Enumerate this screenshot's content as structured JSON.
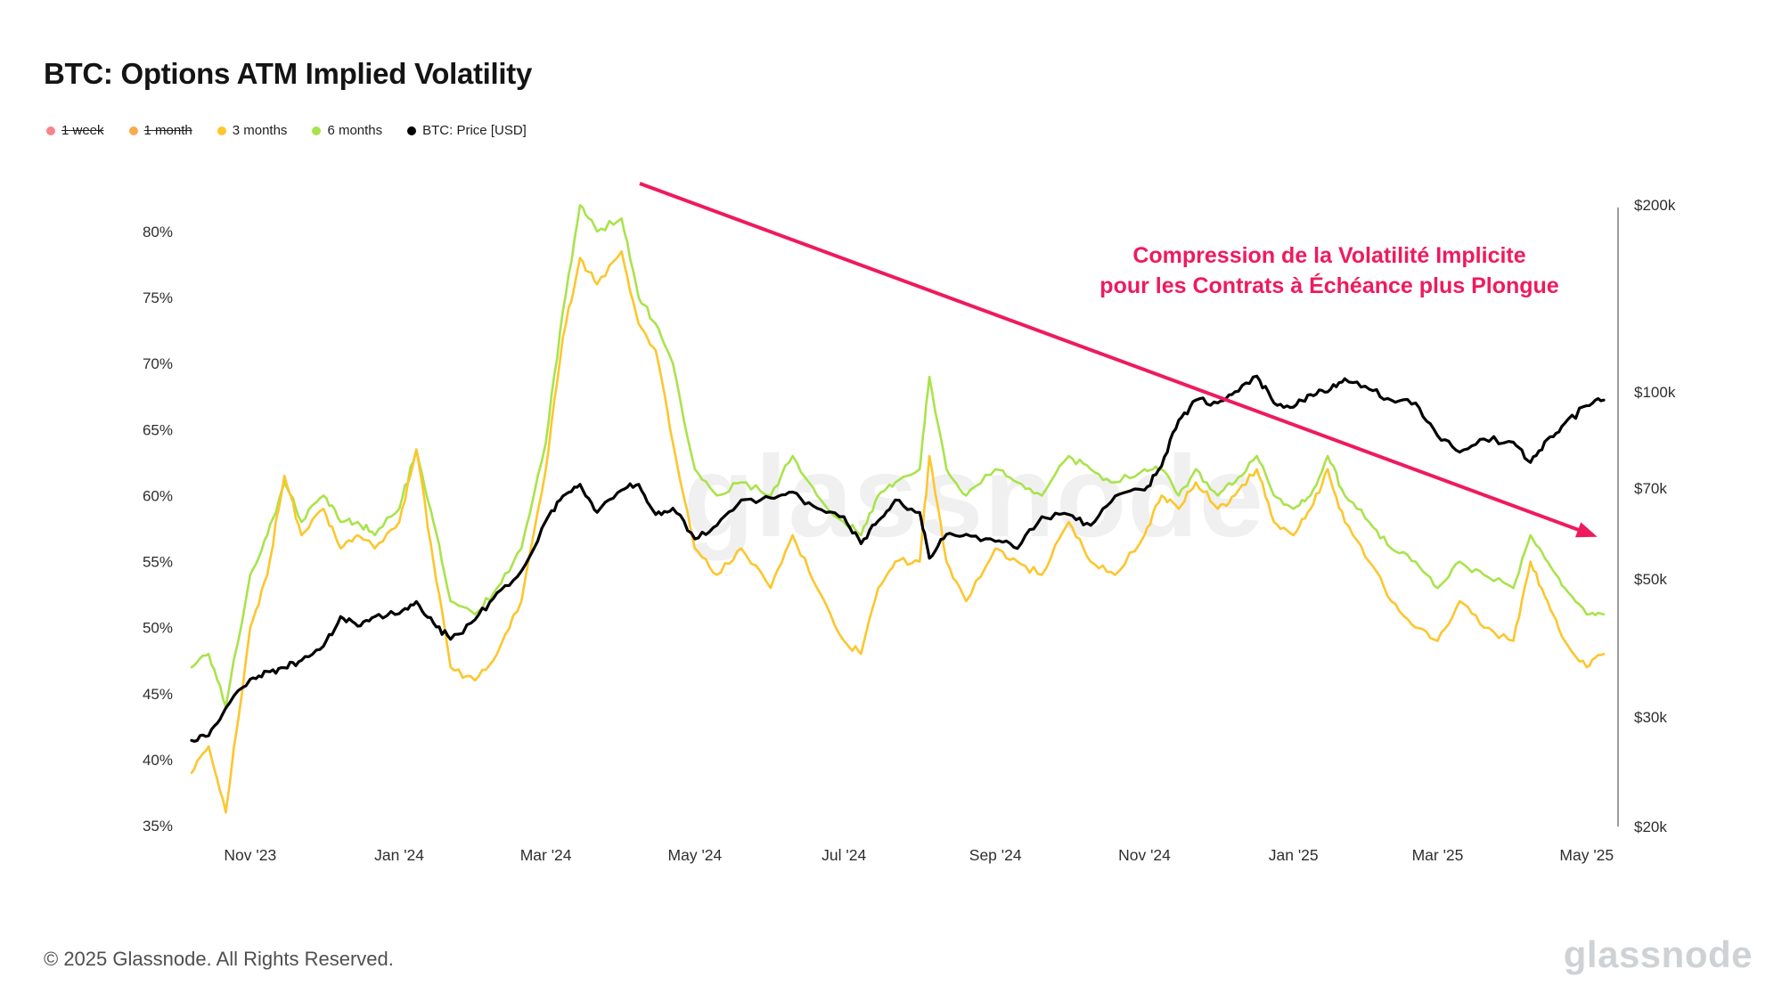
{
  "page": {
    "title": "BTC: Options ATM Implied Volatility",
    "watermark": "glassnode",
    "footer_copyright": "© 2025 Glassnode. All Rights Reserved.",
    "brand_logo": "glassnode"
  },
  "legend": [
    {
      "label": "1 week",
      "color": "#f5848c",
      "disabled": true
    },
    {
      "label": "1 month",
      "color": "#f9ab4b",
      "disabled": true
    },
    {
      "label": "3 months",
      "color": "#fcc62d",
      "disabled": false
    },
    {
      "label": "6 months",
      "color": "#a9e34b",
      "disabled": false
    },
    {
      "label": "BTC: Price [USD]",
      "color": "#000000",
      "disabled": false
    }
  ],
  "annotation": {
    "line1": "Compression de la Volatilité Implicite",
    "line2": "pour les Contrats à Échéance plus Plongue",
    "color": "#ef1a5e"
  },
  "chart_data": {
    "type": "line",
    "title": "BTC: Options ATM Implied Volatility",
    "grid": false,
    "legend_position": "top-left",
    "x_dates": [
      "2023-10-08",
      "2023-10-15",
      "2023-10-22",
      "2023-11-01",
      "2023-11-08",
      "2023-11-15",
      "2023-11-22",
      "2023-12-01",
      "2023-12-08",
      "2023-12-15",
      "2023-12-22",
      "2024-01-01",
      "2024-01-08",
      "2024-01-15",
      "2024-01-22",
      "2024-02-01",
      "2024-02-10",
      "2024-02-20",
      "2024-03-01",
      "2024-03-08",
      "2024-03-15",
      "2024-03-22",
      "2024-04-01",
      "2024-04-08",
      "2024-04-15",
      "2024-04-22",
      "2024-05-01",
      "2024-05-10",
      "2024-05-20",
      "2024-06-01",
      "2024-06-10",
      "2024-06-20",
      "2024-07-01",
      "2024-07-08",
      "2024-07-15",
      "2024-07-22",
      "2024-08-01",
      "2024-08-05",
      "2024-08-12",
      "2024-08-20",
      "2024-09-01",
      "2024-09-10",
      "2024-09-20",
      "2024-10-01",
      "2024-10-10",
      "2024-10-20",
      "2024-11-01",
      "2024-11-08",
      "2024-11-15",
      "2024-11-22",
      "2024-12-01",
      "2024-12-08",
      "2024-12-17",
      "2024-12-24",
      "2025-01-01",
      "2025-01-08",
      "2025-01-15",
      "2025-01-22",
      "2025-02-01",
      "2025-02-10",
      "2025-02-20",
      "2025-03-01",
      "2025-03-10",
      "2025-03-20",
      "2025-04-01",
      "2025-04-08",
      "2025-04-15",
      "2025-04-22",
      "2025-05-01",
      "2025-05-08"
    ],
    "series": [
      {
        "name": "3 months",
        "axis": "left",
        "unit": "%",
        "color": "#fcc62d",
        "values": [
          39,
          41,
          36,
          50,
          54,
          61.5,
          57,
          59,
          56,
          57,
          56,
          58,
          63.5,
          55,
          47,
          46,
          48,
          52,
          62,
          72,
          78,
          76,
          78.5,
          73,
          71,
          64,
          56,
          54,
          56,
          53,
          57,
          53,
          49,
          48,
          53,
          55,
          55,
          63,
          55,
          52,
          56,
          55,
          54,
          58,
          55,
          54,
          57,
          60,
          59,
          61,
          59,
          60,
          62,
          58,
          57,
          59,
          62,
          58,
          55,
          52,
          50,
          49,
          52,
          50,
          49,
          55,
          52,
          49,
          47,
          48
        ]
      },
      {
        "name": "6 months",
        "axis": "left",
        "unit": "%",
        "color": "#a9e34b",
        "values": [
          47,
          48,
          44,
          54,
          57,
          61,
          58,
          60,
          58,
          58,
          57,
          59,
          63.5,
          58,
          52,
          51,
          53,
          56,
          64,
          74,
          82,
          80,
          81,
          75,
          73,
          70,
          62,
          60,
          61,
          60,
          63,
          60,
          58,
          57,
          60,
          61,
          62,
          69,
          62,
          60,
          62,
          61,
          60,
          63,
          62,
          61,
          62,
          62,
          60,
          62,
          60,
          61,
          63,
          60,
          59,
          60,
          63,
          60,
          58,
          56,
          55,
          53,
          55,
          54,
          53,
          57,
          55,
          53,
          51,
          51
        ]
      },
      {
        "name": "BTC: Price [USD]",
        "axis": "right",
        "unit": "USD thousands",
        "color": "#000000",
        "values": [
          27.5,
          28,
          31,
          34.5,
          35.5,
          36,
          37,
          39,
          43.5,
          42,
          43.5,
          44,
          46,
          42.5,
          40,
          43,
          47.5,
          51.5,
          62,
          68,
          71,
          64,
          69.5,
          71,
          63.5,
          65,
          58,
          61,
          67,
          67.5,
          69,
          65,
          63,
          57,
          62,
          67,
          64,
          54,
          59,
          59,
          57.5,
          56,
          63,
          63.5,
          61,
          68,
          69.5,
          76,
          90,
          97,
          96,
          100,
          106,
          96,
          94.5,
          99,
          100,
          105,
          101,
          97,
          96,
          85,
          80,
          84,
          83,
          77,
          84,
          89,
          95,
          97
        ]
      }
    ],
    "left_axis": {
      "unit": "%",
      "range": [
        35,
        83
      ],
      "ticks": [
        35,
        40,
        45,
        50,
        55,
        60,
        65,
        70,
        75,
        80
      ]
    },
    "right_axis": {
      "unit": "USD",
      "scale": "log",
      "range_k": [
        20,
        210
      ],
      "ticks": [
        {
          "k": 20,
          "label": "$20k"
        },
        {
          "k": 30,
          "label": "$30k"
        },
        {
          "k": 50,
          "label": "$50k"
        },
        {
          "k": 70,
          "label": "$70k"
        },
        {
          "k": 100,
          "label": "$100k"
        },
        {
          "k": 200,
          "label": "$200k"
        }
      ]
    },
    "x_ticks": [
      {
        "date": "2023-11-01",
        "label": "Nov '23"
      },
      {
        "date": "2024-01-01",
        "label": "Jan '24"
      },
      {
        "date": "2024-03-01",
        "label": "Mar '24"
      },
      {
        "date": "2024-05-01",
        "label": "May '24"
      },
      {
        "date": "2024-07-01",
        "label": "Jul '24"
      },
      {
        "date": "2024-09-01",
        "label": "Sep '24"
      },
      {
        "date": "2024-11-01",
        "label": "Nov '24"
      },
      {
        "date": "2025-01-01",
        "label": "Jan '25"
      },
      {
        "date": "2025-03-01",
        "label": "Mar '25"
      },
      {
        "date": "2025-05-01",
        "label": "May '25"
      }
    ]
  }
}
